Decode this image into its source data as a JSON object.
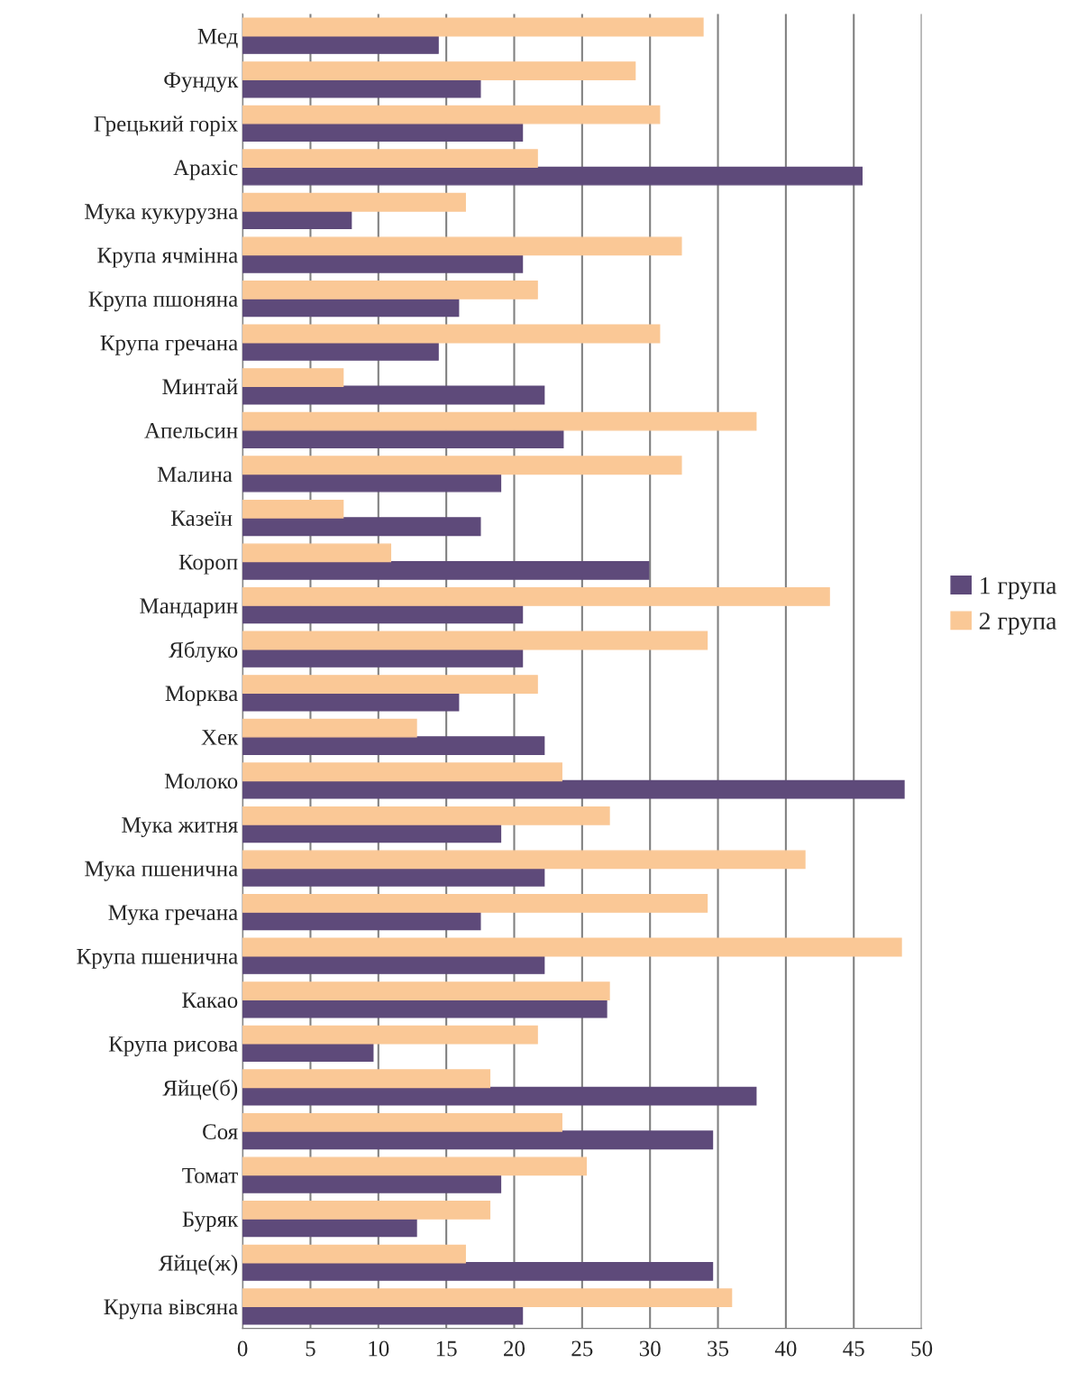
{
  "chart_data": {
    "type": "bar",
    "orientation": "horizontal",
    "categories": [
      "Мед",
      "Фундук",
      "Грецький горіх",
      "Арахіс",
      "Мука кукурузна",
      "Крупа ячмінна",
      "Крупа пшоняна",
      "Крупа гречана",
      "Минтай",
      "Апельсин",
      "Малина ",
      "Казеїн ",
      "Короп",
      "Мандарин",
      "Яблуко",
      "Морква",
      "Хек",
      "Молоко",
      "Мука житня",
      "Мука пшенична",
      "Мука гречана",
      "Крупа пшенична",
      "Какао",
      "Крупа рисова",
      "Яйце(б)",
      "Соя",
      "Томат",
      "Буряк",
      "Яйце(ж)",
      "Крупа вівсяна"
    ],
    "series": [
      {
        "name": "1 група",
        "color": "#5e4a7a",
        "values": [
          14.4,
          17.5,
          20.6,
          45.6,
          8.0,
          20.6,
          15.9,
          14.4,
          22.2,
          23.6,
          19.0,
          17.5,
          29.9,
          20.6,
          20.6,
          15.9,
          22.2,
          48.7,
          19.0,
          22.2,
          17.5,
          22.2,
          26.8,
          9.6,
          37.8,
          34.6,
          19.0,
          12.8,
          34.6,
          20.6
        ]
      },
      {
        "name": "2 група",
        "color": "#fac896",
        "values": [
          33.9,
          28.9,
          30.7,
          21.7,
          16.4,
          32.3,
          21.7,
          30.7,
          7.4,
          37.8,
          32.3,
          7.4,
          10.9,
          43.2,
          34.2,
          21.7,
          12.8,
          23.5,
          27.0,
          41.4,
          34.2,
          48.5,
          27.0,
          21.7,
          18.2,
          23.5,
          25.3,
          18.2,
          16.4,
          36.0
        ]
      }
    ],
    "xlim": [
      0,
      50
    ],
    "xticks": [
      0,
      5,
      10,
      15,
      20,
      25,
      30,
      35,
      40,
      45,
      50
    ],
    "grid": "x",
    "legend": "right"
  }
}
